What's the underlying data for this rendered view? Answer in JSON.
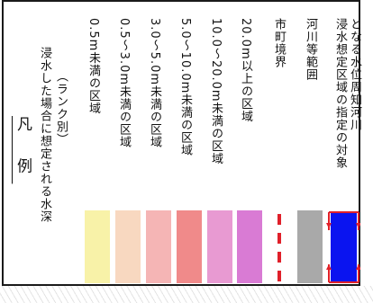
{
  "legend": {
    "title": "凡 例",
    "heading_line1": "浸水した場合に想定される水深",
    "heading_line2": "（ランク別）",
    "items": [
      {
        "label": "0.5m未満の区域",
        "color": "#f8f2a8"
      },
      {
        "label": "0.5～3.0m未満の区域",
        "color": "#f8d8c0"
      },
      {
        "label": "3.0～5.0m未満の区域",
        "color": "#f5b5b5"
      },
      {
        "label": "5.0～10.0m未満の区域",
        "color": "#f08a8a"
      },
      {
        "label": "10.0～20.0m未満の区域",
        "color": "#e89ad2"
      },
      {
        "label": "20.0m以上の区域",
        "color": "#d97bd4"
      }
    ],
    "boundary": {
      "label": "市町境界",
      "color": "#e0202a"
    },
    "river_area": {
      "label": "河川等範囲",
      "color": "#a9a9a9"
    },
    "designated_river": {
      "label_line1": "浸水想定区域の指定の対象",
      "label_line2": "となる水位周知河川",
      "fill_color": "#0a14f0",
      "arrow_color": "#e0202a"
    }
  }
}
